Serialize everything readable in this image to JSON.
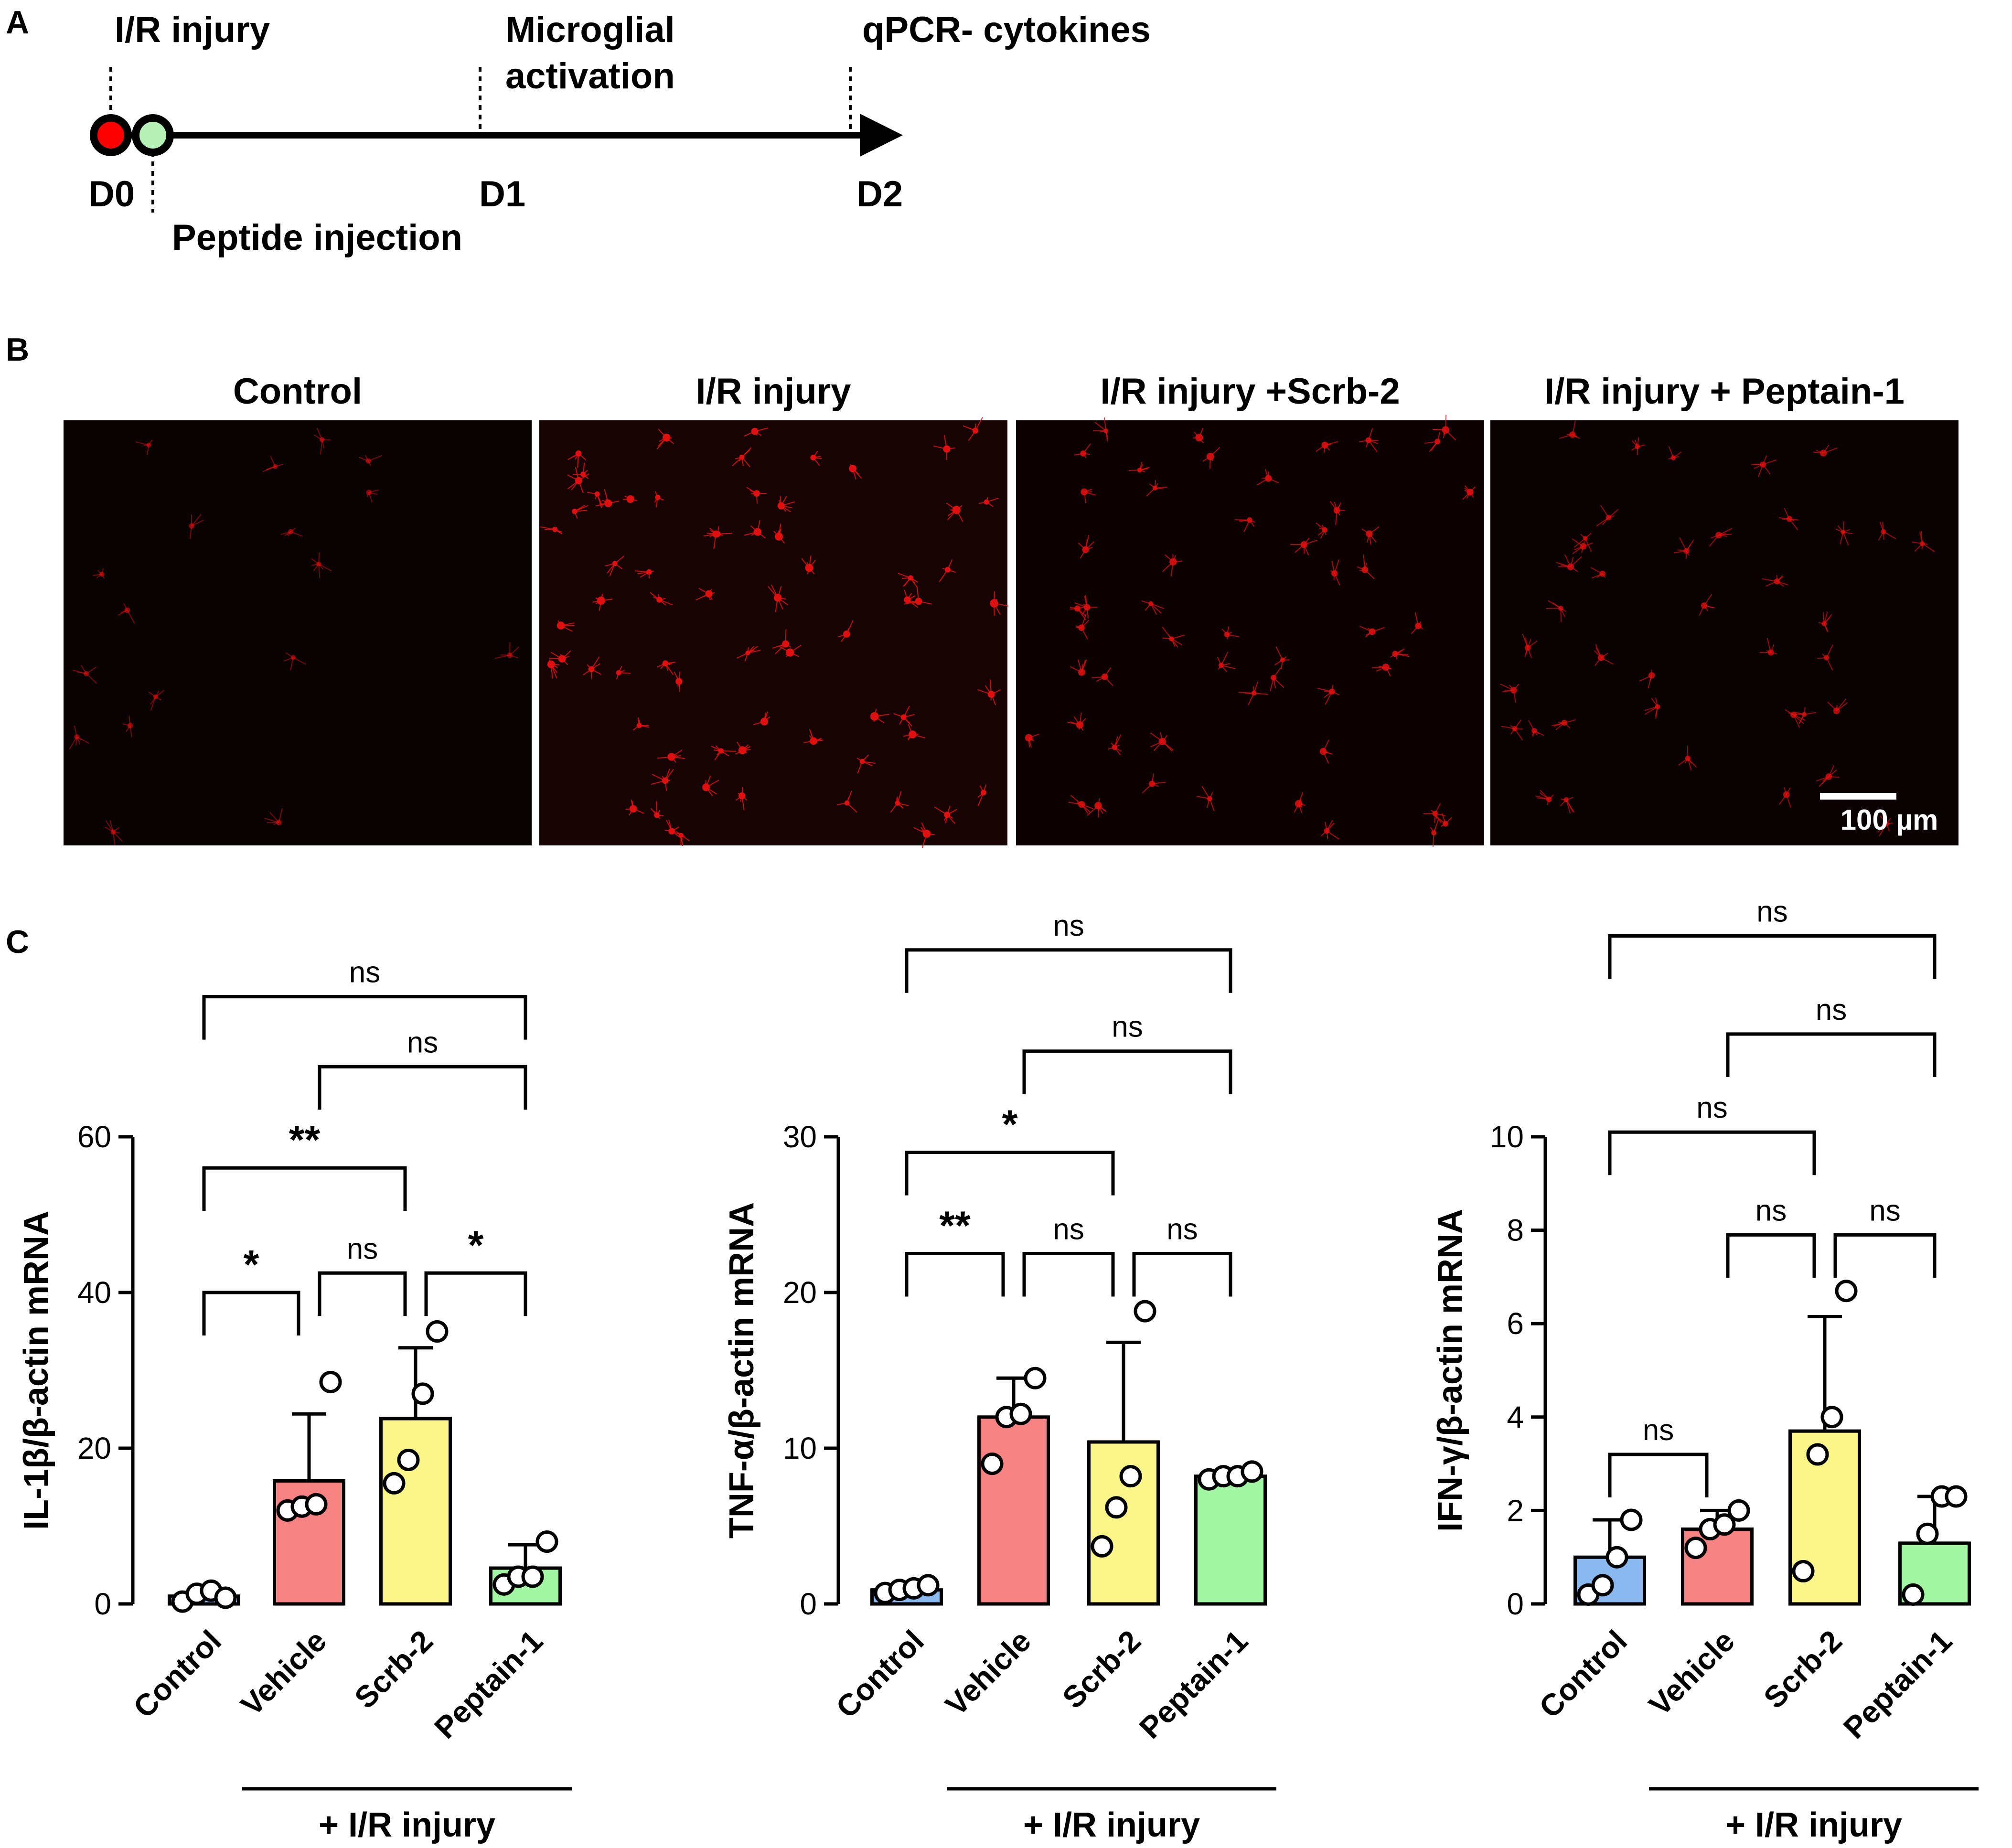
{
  "panel_labels": {
    "a": "A",
    "b": "B",
    "c": "C"
  },
  "timeline": {
    "events_top": [
      "I/R injury",
      "Microglial",
      "activation",
      "qPCR- cytokines"
    ],
    "days": [
      "D0",
      "D1",
      "D2"
    ],
    "events_bottom": [
      "Peptide injection"
    ],
    "colors": {
      "injury_dot": "#ff0000",
      "peptide_dot": "#b6f0b6"
    }
  },
  "micrographs": {
    "titles": [
      "Control",
      "I/R injury",
      "I/R injury +Scrb-2",
      "I/R injury + Peptain-1"
    ],
    "scale_bar": "100 µm",
    "stain_color": "#e01010",
    "density": [
      0.25,
      1.0,
      0.75,
      0.55
    ]
  },
  "group_label": "+ I/R injury",
  "bar_colors": [
    "#8ab9f0",
    "#f58383",
    "#fbf68a",
    "#a2f5a2"
  ],
  "chart_data": [
    {
      "type": "bar",
      "categories": [
        "Control",
        "Vehicle",
        "Scrb-2",
        "Peptain-1"
      ],
      "values": [
        1.0,
        15.8,
        23.8,
        4.6
      ],
      "error": [
        0.4,
        8.6,
        9.1,
        3.0
      ],
      "points": [
        [
          0.3,
          1.3,
          1.7,
          0.8
        ],
        [
          12,
          12.5,
          12.8,
          28.5
        ],
        [
          15.5,
          18.5,
          27,
          35
        ],
        [
          2.5,
          3.5,
          3.5,
          8
        ]
      ],
      "ylabel": "IL-1β/β-actin mRNA",
      "yticks": [
        "0",
        "20",
        "40",
        "60"
      ],
      "ylim": [
        0,
        60
      ],
      "comparisons": [
        {
          "from": 0,
          "to": 3,
          "label": "ns",
          "level": 78
        },
        {
          "from": 1,
          "to": 3,
          "label": "ns",
          "level": 69
        },
        {
          "from": 0,
          "to": 2,
          "label": "**",
          "level": 56
        },
        {
          "from": 0,
          "to": 1,
          "label": "*",
          "level": 40
        },
        {
          "from": 1,
          "to": 2,
          "label": "ns",
          "level": 42.5
        },
        {
          "from": 2,
          "to": 3,
          "label": "*",
          "level": 42.5
        }
      ]
    },
    {
      "type": "bar",
      "categories": [
        "Control",
        "Vehicle",
        "Scrb-2",
        "Peptain-1"
      ],
      "values": [
        0.9,
        12.0,
        10.4,
        8.2
      ],
      "error": [
        0.3,
        2.5,
        6.4,
        0.3
      ],
      "points": [
        [
          0.7,
          0.9,
          1.0,
          1.2
        ],
        [
          9,
          12,
          12.2,
          14.5
        ],
        [
          3.7,
          6.2,
          8.2,
          18.8
        ],
        [
          8,
          8.2,
          8.2,
          8.5
        ]
      ],
      "ylabel": "TNF-α/β-actin mRNA",
      "yticks": [
        "0",
        "10",
        "20",
        "30"
      ],
      "ylim": [
        0,
        30
      ],
      "comparisons": [
        {
          "from": 0,
          "to": 3,
          "label": "ns",
          "level": 42
        },
        {
          "from": 1,
          "to": 3,
          "label": "ns",
          "level": 35.5
        },
        {
          "from": 0,
          "to": 2,
          "label": "*",
          "level": 29
        },
        {
          "from": 0,
          "to": 1,
          "label": "**",
          "level": 22.5
        },
        {
          "from": 1,
          "to": 2,
          "label": "ns",
          "level": 22.5
        },
        {
          "from": 2,
          "to": 3,
          "label": "ns",
          "level": 22.5
        }
      ]
    },
    {
      "type": "bar",
      "categories": [
        "Control",
        "Vehicle",
        "Scrb-2",
        "Peptain-1"
      ],
      "values": [
        1.0,
        1.6,
        3.7,
        1.3
      ],
      "error": [
        0.8,
        0.4,
        2.45,
        1.0
      ],
      "points": [
        [
          0.2,
          0.4,
          1.0,
          1.8
        ],
        [
          1.2,
          1.6,
          1.7,
          2.0
        ],
        [
          0.7,
          3.2,
          4.0,
          6.7
        ],
        [
          0.2,
          1.5,
          2.3,
          2.3
        ]
      ],
      "ylabel": "IFN-γ/β-actin mRNA",
      "yticks": [
        "0",
        "2",
        "4",
        "6",
        "8",
        "10"
      ],
      "ylim": [
        0,
        10
      ],
      "comparisons": [
        {
          "from": 0,
          "to": 3,
          "label": "ns",
          "level": 14.3
        },
        {
          "from": 1,
          "to": 3,
          "label": "ns",
          "level": 12.2
        },
        {
          "from": 0,
          "to": 2,
          "label": "ns",
          "level": 10.1
        },
        {
          "from": 0,
          "to": 1,
          "label": "ns",
          "level": 3.2
        },
        {
          "from": 1,
          "to": 2,
          "label": "ns",
          "level": 7.9
        },
        {
          "from": 2,
          "to": 3,
          "label": "ns",
          "level": 7.9
        }
      ]
    }
  ]
}
